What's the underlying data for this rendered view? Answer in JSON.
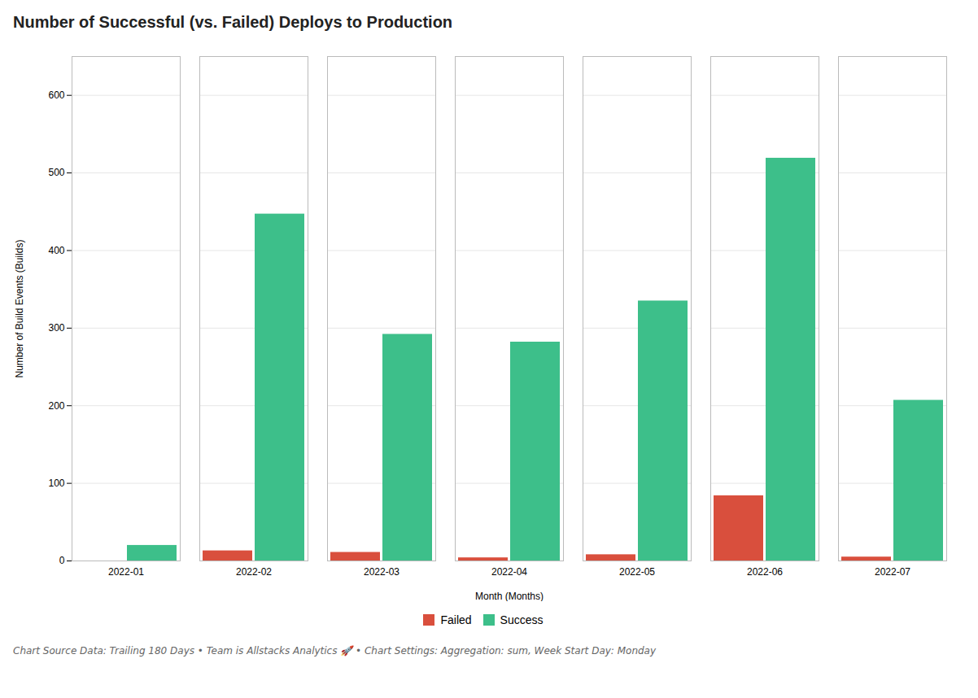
{
  "chart_data": {
    "type": "bar",
    "title": "Number of Successful (vs. Failed) Deploys to Production",
    "xlabel": "Month (Months)",
    "ylabel": "Number of Build Events (Builds)",
    "footer": "Chart Source Data: Trailing 180 Days • Team is Allstacks Analytics 🚀 • Chart Settings: Aggregation: sum, Week Start Day: Monday",
    "categories": [
      "2022-01",
      "2022-02",
      "2022-03",
      "2022-04",
      "2022-05",
      "2022-06",
      "2022-07"
    ],
    "series": [
      {
        "name": "Failed",
        "color": "#d94f3d",
        "values": [
          0,
          13,
          11,
          4,
          8,
          84,
          5
        ]
      },
      {
        "name": "Success",
        "color": "#3dbf8a",
        "values": [
          20,
          447,
          292,
          282,
          335,
          519,
          207
        ]
      }
    ],
    "ylim": [
      0,
      650
    ],
    "yticks": [
      0,
      100,
      200,
      300,
      400,
      500,
      600
    ],
    "grid": true,
    "legend": "bottom"
  }
}
